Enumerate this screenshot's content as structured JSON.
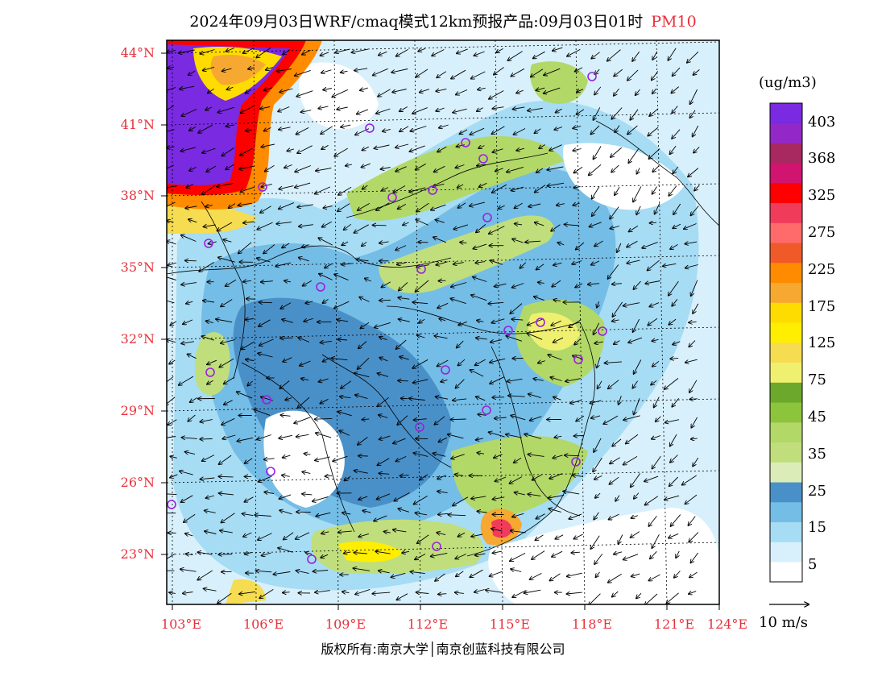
{
  "title": {
    "main": "2024年09月03日WRF/cmaq模式12km预报产品:09月03日01时",
    "pollutant": "PM10"
  },
  "map": {
    "lat_labels": [
      "44°N",
      "41°N",
      "38°N",
      "35°N",
      "32°N",
      "29°N",
      "26°N",
      "23°N"
    ],
    "lon_labels": [
      "103°E",
      "106°E",
      "109°E",
      "112°E",
      "115°E",
      "118°E",
      "121°E",
      "124°E"
    ]
  },
  "colorbar": {
    "unit": "(ug/m3)",
    "colors": [
      "#ffffff",
      "#d8f0fb",
      "#a6dcf4",
      "#74bde6",
      "#4a90c8",
      "#dbecb8",
      "#c0de7c",
      "#b2d868",
      "#8cc43c",
      "#6ca82c",
      "#f0f070",
      "#f5dc50",
      "#ffee00",
      "#ffdc00",
      "#f7a830",
      "#ff8c00",
      "#f05a28",
      "#ff6a6a",
      "#f03c5a",
      "#ff0000",
      "#d01470",
      "#a82860",
      "#9228c8",
      "#7a2ae0"
    ],
    "labels": [
      "5",
      "15",
      "25",
      "35",
      "45",
      "75",
      "125",
      "175",
      "225",
      "275",
      "325",
      "368",
      "403"
    ]
  },
  "wind_scale": {
    "label": "10 m/s"
  },
  "copyright": "版权所有:南京大学│南京创蓝科技有限公司"
}
